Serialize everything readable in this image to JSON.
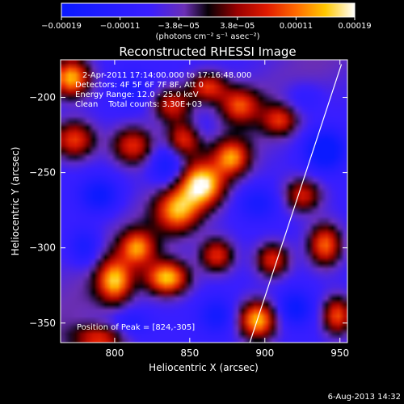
{
  "chart_data": {
    "type": "heatmap",
    "title": "Reconstructed RHESSI Image",
    "xlabel": "Heliocentric X (arcsec)",
    "ylabel": "Heliocentric Y (arcsec)",
    "xlim": [
      764,
      955
    ],
    "ylim": [
      -363,
      -175
    ],
    "x_ticks": [
      800,
      850,
      900,
      950
    ],
    "y_ticks": [
      -200,
      -250,
      -300,
      -350
    ],
    "y_tick_labels": [
      "−200",
      "−250",
      "−300",
      "−350"
    ],
    "colorbar": {
      "range": [
        -0.00019,
        0.00019
      ],
      "tick_labels": [
        "−0.00019",
        "−0.00011",
        "−3.8e−05",
        "3.8e−05",
        "0.00011",
        "0.00019"
      ],
      "units": "(photons cm⁻² s⁻¹ asec⁻²)"
    },
    "annotations": {
      "time_range": "2-Apr-2011 17:14:00.000 to 17:16:48.000",
      "detectors": "Detectors: 4F 5F 6F 7F 8F, Att 0",
      "energy_range": "Energy Range: 12.0 - 25.0 keV",
      "clean_info": "Clean    Total counts: 3.30E+03",
      "peak": "Position of Peak = [824,-305]"
    },
    "limb_line": [
      [
        890,
        -363
      ],
      [
        951,
        -178
      ]
    ],
    "sources": [
      {
        "x": 771,
        "y": -187,
        "value": 0.00019,
        "sx": 9,
        "sy": 9
      },
      {
        "x": 773,
        "y": -228,
        "value": 0.00013,
        "sx": 10,
        "sy": 9
      },
      {
        "x": 812,
        "y": -232,
        "value": 0.00012,
        "sx": 10,
        "sy": 9
      },
      {
        "x": 838,
        "y": -205,
        "value": 0.00011,
        "sx": 9,
        "sy": 8
      },
      {
        "x": 862,
        "y": -193,
        "value": 0.00012,
        "sx": 9,
        "sy": 7
      },
      {
        "x": 845,
        "y": -228,
        "value": 0.00011,
        "sx": 8,
        "sy": 8
      },
      {
        "x": 842,
        "y": -275,
        "value": 0.00014,
        "sx": 10,
        "sy": 10
      },
      {
        "x": 858,
        "y": -258,
        "value": 0.00019,
        "sx": 10,
        "sy": 10
      },
      {
        "x": 878,
        "y": -240,
        "value": 0.00013,
        "sx": 8,
        "sy": 8
      },
      {
        "x": 835,
        "y": -320,
        "value": 0.00019,
        "sx": 10,
        "sy": 8
      },
      {
        "x": 800,
        "y": -322,
        "value": 0.00016,
        "sx": 8,
        "sy": 10
      },
      {
        "x": 815,
        "y": -300,
        "value": 0.00013,
        "sx": 8,
        "sy": 8
      },
      {
        "x": 868,
        "y": -305,
        "value": 0.00012,
        "sx": 8,
        "sy": 8
      },
      {
        "x": 905,
        "y": -308,
        "value": 0.00012,
        "sx": 8,
        "sy": 8
      },
      {
        "x": 895,
        "y": -348,
        "value": 0.00019,
        "sx": 9,
        "sy": 9
      },
      {
        "x": 940,
        "y": -298,
        "value": 0.00015,
        "sx": 8,
        "sy": 10
      },
      {
        "x": 925,
        "y": -265,
        "value": 0.00011,
        "sx": 9,
        "sy": 8
      },
      {
        "x": 948,
        "y": -345,
        "value": 0.00014,
        "sx": 7,
        "sy": 9
      },
      {
        "x": 790,
        "y": -360,
        "value": 0.00011,
        "sx": 12,
        "sy": 6
      },
      {
        "x": 883,
        "y": -205,
        "value": 0.00011,
        "sx": 9,
        "sy": 8
      },
      {
        "x": 910,
        "y": -215,
        "value": 9e-05,
        "sx": 8,
        "sy": 7
      },
      {
        "x": 790,
        "y": -265,
        "value": -0.00015,
        "sx": 9,
        "sy": 8
      },
      {
        "x": 835,
        "y": -245,
        "value": -0.00015,
        "sx": 8,
        "sy": 10
      },
      {
        "x": 895,
        "y": -270,
        "value": -0.00012,
        "sx": 10,
        "sy": 8
      },
      {
        "x": 940,
        "y": -235,
        "value": -0.00019,
        "sx": 9,
        "sy": 9
      },
      {
        "x": 925,
        "y": -200,
        "value": -0.0001,
        "sx": 10,
        "sy": 8
      },
      {
        "x": 868,
        "y": -345,
        "value": -0.00013,
        "sx": 8,
        "sy": 8
      },
      {
        "x": 920,
        "y": -340,
        "value": -0.00015,
        "sx": 8,
        "sy": 8
      },
      {
        "x": 810,
        "y": -350,
        "value": -0.0001,
        "sx": 9,
        "sy": 6
      },
      {
        "x": 812,
        "y": -195,
        "value": -0.0001,
        "sx": 8,
        "sy": 8
      },
      {
        "x": 780,
        "y": -300,
        "value": -0.00013,
        "sx": 7,
        "sy": 9
      },
      {
        "x": 860,
        "y": -220,
        "value": -7e-05,
        "sx": 6,
        "sy": 6
      }
    ]
  },
  "footer": {
    "date": "6-Aug-2013 14:32"
  }
}
